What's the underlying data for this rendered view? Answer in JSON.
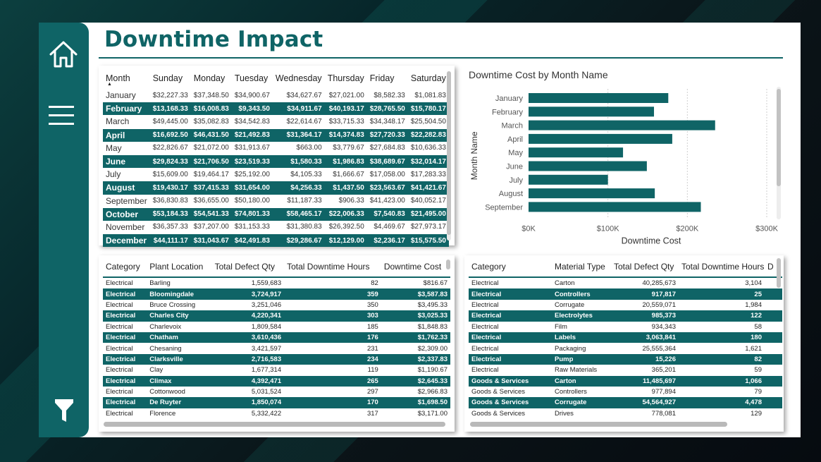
{
  "page": {
    "title": "Downtime Impact"
  },
  "sidebar": {
    "icons": [
      "home-icon",
      "menu-icon",
      "filter-icon"
    ]
  },
  "colors": {
    "accent": "#0f6466",
    "bar": "#0f6466"
  },
  "month_table": {
    "sort_indicator": "▲",
    "headers": [
      "Month",
      "Sunday",
      "Monday",
      "Tuesday",
      "Wednesday",
      "Thursday",
      "Friday",
      "Saturday"
    ],
    "rows": [
      [
        "January",
        "$32,227.33",
        "$37,348.50",
        "$34,900.67",
        "$34,627.67",
        "$27,021.00",
        "$8,582.33",
        "$1,081.83"
      ],
      [
        "February",
        "$13,168.33",
        "$16,008.83",
        "$9,343.50",
        "$34,911.67",
        "$40,193.17",
        "$28,765.50",
        "$15,780.17"
      ],
      [
        "March",
        "$49,445.00",
        "$35,082.83",
        "$34,542.83",
        "$22,614.67",
        "$33,715.33",
        "$34,348.17",
        "$25,504.50"
      ],
      [
        "April",
        "$16,692.50",
        "$46,431.50",
        "$21,492.83",
        "$31,364.17",
        "$14,374.83",
        "$27,720.33",
        "$22,282.83"
      ],
      [
        "May",
        "$22,826.67",
        "$21,072.00",
        "$31,913.67",
        "$663.00",
        "$3,779.67",
        "$27,684.83",
        "$10,636.33"
      ],
      [
        "June",
        "$29,824.33",
        "$21,706.50",
        "$23,519.33",
        "$1,580.33",
        "$1,986.83",
        "$38,689.67",
        "$32,014.17"
      ],
      [
        "July",
        "$15,609.00",
        "$19,464.17",
        "$25,192.00",
        "$4,105.33",
        "$1,666.67",
        "$17,058.00",
        "$17,283.33"
      ],
      [
        "August",
        "$19,430.17",
        "$37,415.33",
        "$31,654.00",
        "$4,256.33",
        "$1,437.50",
        "$23,563.67",
        "$41,421.67"
      ],
      [
        "September",
        "$36,830.83",
        "$36,655.00",
        "$50,180.00",
        "$11,187.33",
        "$906.33",
        "$41,423.00",
        "$40,052.17"
      ],
      [
        "October",
        "$53,184.33",
        "$54,541.33",
        "$74,801.33",
        "$58,465.17",
        "$22,006.33",
        "$7,540.83",
        "$21,495.00"
      ],
      [
        "November",
        "$36,357.33",
        "$37,207.00",
        "$31,153.33",
        "$31,380.83",
        "$26,392.50",
        "$4,469.67",
        "$27,973.17"
      ],
      [
        "December",
        "$44,111.17",
        "$31,043.67",
        "$42,491.83",
        "$29,286.67",
        "$12,129.00",
        "$2,236.17",
        "$15,575.50"
      ]
    ]
  },
  "chart_data": {
    "type": "bar",
    "orientation": "horizontal",
    "title": "Downtime Cost by Month Name",
    "xlabel": "Downtime Cost",
    "ylabel": "Month Name",
    "categories": [
      "January",
      "February",
      "March",
      "April",
      "May",
      "June",
      "July",
      "August",
      "September"
    ],
    "values": [
      176000,
      158000,
      235000,
      181000,
      119000,
      149000,
      100000,
      159000,
      217000
    ],
    "xlim": [
      0,
      300000
    ],
    "xticks": [
      "$0K",
      "$100K",
      "$200K",
      "$300K"
    ],
    "grid": true
  },
  "plant_table": {
    "headers": [
      "Category",
      "Plant Location",
      "Total Defect Qty",
      "Total Downtime Hours",
      "Downtime Cost"
    ],
    "rows": [
      [
        "Electrical",
        "Barling",
        "1,559,683",
        "82",
        "$816.67"
      ],
      [
        "Electrical",
        "Bloomingdale",
        "3,724,917",
        "359",
        "$3,587.83"
      ],
      [
        "Electrical",
        "Bruce Crossing",
        "3,251,046",
        "350",
        "$3,495.33"
      ],
      [
        "Electrical",
        "Charles City",
        "4,220,341",
        "303",
        "$3,025.33"
      ],
      [
        "Electrical",
        "Charlevoix",
        "1,809,584",
        "185",
        "$1,848.83"
      ],
      [
        "Electrical",
        "Chatham",
        "3,610,436",
        "176",
        "$1,762.33"
      ],
      [
        "Electrical",
        "Chesaning",
        "3,421,597",
        "231",
        "$2,309.00"
      ],
      [
        "Electrical",
        "Clarksville",
        "2,716,583",
        "234",
        "$2,337.83"
      ],
      [
        "Electrical",
        "Clay",
        "1,677,314",
        "119",
        "$1,190.67"
      ],
      [
        "Electrical",
        "Climax",
        "4,392,471",
        "265",
        "$2,645.33"
      ],
      [
        "Electrical",
        "Cottonwood",
        "5,031,524",
        "297",
        "$2,966.83"
      ],
      [
        "Electrical",
        "De Ruyter",
        "1,850,074",
        "170",
        "$1,698.50"
      ],
      [
        "Electrical",
        "Florence",
        "5,332,422",
        "317",
        "$3,171.00"
      ]
    ]
  },
  "material_table": {
    "headers": [
      "Category",
      "Material Type",
      "Total Defect Qty",
      "Total Downtime Hours",
      "D"
    ],
    "rows": [
      [
        "Electrical",
        "Carton",
        "40,285,673",
        "3,104"
      ],
      [
        "Electrical",
        "Controllers",
        "917,817",
        "25"
      ],
      [
        "Electrical",
        "Corrugate",
        "20,559,071",
        "1,984"
      ],
      [
        "Electrical",
        "Electrolytes",
        "985,373",
        "122"
      ],
      [
        "Electrical",
        "Film",
        "934,343",
        "58"
      ],
      [
        "Electrical",
        "Labels",
        "3,063,841",
        "180"
      ],
      [
        "Electrical",
        "Packaging",
        "25,555,364",
        "1,621"
      ],
      [
        "Electrical",
        "Pump",
        "15,226",
        "82"
      ],
      [
        "Electrical",
        "Raw Materials",
        "365,201",
        "59"
      ],
      [
        "Goods & Services",
        "Carton",
        "11,485,697",
        "1,066"
      ],
      [
        "Goods & Services",
        "Controllers",
        "977,894",
        "79"
      ],
      [
        "Goods & Services",
        "Corrugate",
        "54,564,927",
        "4,478"
      ],
      [
        "Goods & Services",
        "Drives",
        "778,081",
        "129"
      ]
    ]
  }
}
